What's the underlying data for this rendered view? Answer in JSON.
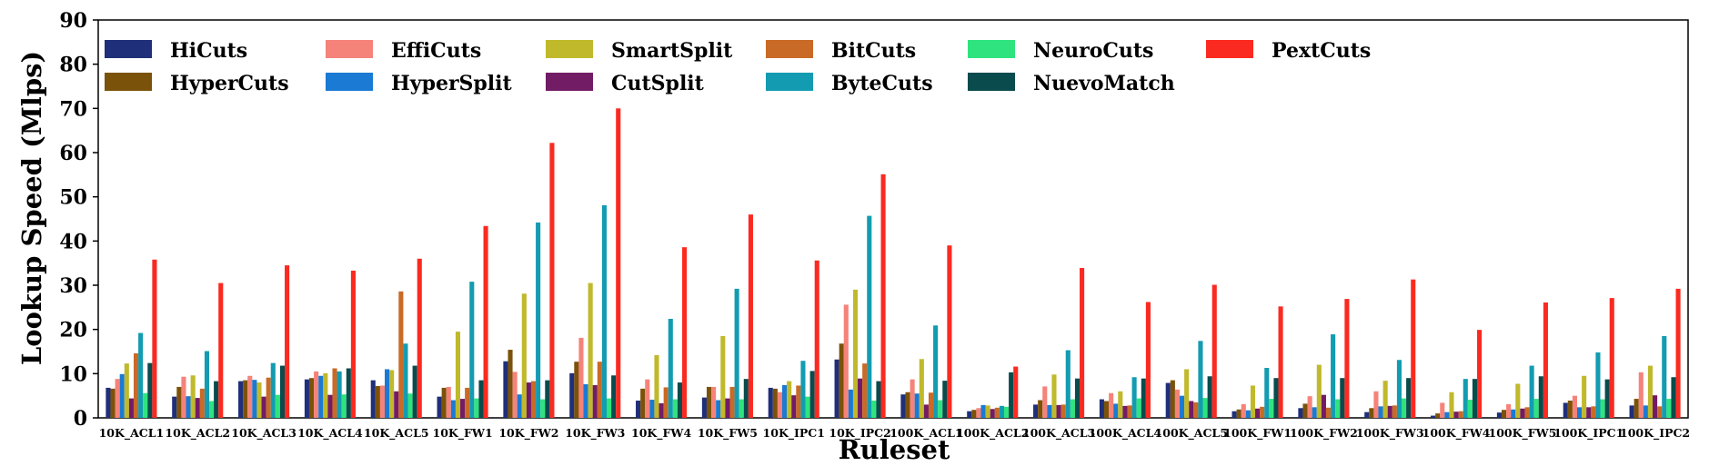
{
  "chart_data": {
    "type": "bar",
    "title": "",
    "xlabel": "Ruleset",
    "ylabel": "Lookup Speed (Mlps)",
    "ylim": [
      0,
      90
    ],
    "yticks": [
      0,
      10,
      20,
      30,
      40,
      50,
      60,
      70,
      80,
      90
    ],
    "grid": false,
    "legend_position": "top-left",
    "categories": [
      "10K_ACL1",
      "10K_ACL2",
      "10K_ACL3",
      "10K_ACL4",
      "10K_ACL5",
      "10K_FW1",
      "10K_FW2",
      "10K_FW3",
      "10K_FW4",
      "10K_FW5",
      "10K_IPC1",
      "10K_IPC2",
      "100K_ACL1",
      "100K_ACL2",
      "100K_ACL3",
      "100K_ACL4",
      "100K_ACL5",
      "100K_FW1",
      "100K_FW2",
      "100K_FW3",
      "100K_FW4",
      "100K_FW5",
      "100K_IPC1",
      "100K_IPC2"
    ],
    "series": [
      {
        "name": "HiCuts",
        "color": "#1f2f7a",
        "values": [
          6.8,
          4.8,
          8.3,
          8.7,
          8.5,
          4.8,
          12.8,
          10.1,
          3.9,
          4.6,
          6.8,
          13.2,
          5.3,
          1.5,
          3.0,
          4.2,
          7.9,
          1.5,
          2.2,
          1.3,
          0.5,
          1.2,
          3.4,
          2.8
        ]
      },
      {
        "name": "HyperCuts",
        "color": "#7b5209",
        "values": [
          6.6,
          7.0,
          8.5,
          9.0,
          7.2,
          6.8,
          15.4,
          12.7,
          6.6,
          7.0,
          6.6,
          16.8,
          5.8,
          1.8,
          4.0,
          3.8,
          8.5,
          1.9,
          3.2,
          2.2,
          1.0,
          1.8,
          3.9,
          4.3
        ]
      },
      {
        "name": "EffiCuts",
        "color": "#f5837a",
        "values": [
          8.8,
          9.3,
          9.5,
          10.5,
          7.3,
          7.0,
          10.4,
          18.1,
          8.7,
          7.0,
          5.8,
          25.6,
          8.7,
          2.2,
          7.1,
          5.6,
          6.4,
          3.1,
          4.9,
          6.0,
          3.4,
          3.1,
          5.0,
          10.3
        ]
      },
      {
        "name": "HyperSplit",
        "color": "#1a7ad4",
        "values": [
          9.9,
          4.9,
          8.6,
          9.5,
          11.0,
          4.0,
          5.3,
          7.6,
          4.1,
          4.0,
          7.4,
          6.4,
          5.5,
          2.9,
          2.9,
          3.2,
          5.0,
          1.7,
          2.4,
          2.6,
          1.3,
          1.9,
          2.4,
          2.8
        ]
      },
      {
        "name": "SmartSplit",
        "color": "#c0b92b",
        "values": [
          12.3,
          9.6,
          8.0,
          10.1,
          10.8,
          19.5,
          28.1,
          30.5,
          14.2,
          18.5,
          8.3,
          29.0,
          13.3,
          2.8,
          9.8,
          6.0,
          11.0,
          7.3,
          12.0,
          8.4,
          5.8,
          7.7,
          9.5,
          11.8
        ]
      },
      {
        "name": "CutSplit",
        "color": "#731c66",
        "values": [
          4.4,
          4.5,
          4.8,
          5.2,
          6.0,
          4.3,
          8.0,
          7.4,
          3.3,
          4.4,
          5.1,
          8.9,
          3.0,
          2.0,
          2.9,
          2.7,
          3.8,
          2.1,
          5.2,
          2.7,
          1.4,
          2.1,
          2.4,
          5.1
        ]
      },
      {
        "name": "BitCuts",
        "color": "#c96a26",
        "values": [
          14.6,
          6.6,
          9.1,
          11.2,
          28.6,
          6.8,
          8.3,
          12.7,
          6.9,
          7.0,
          7.3,
          12.3,
          5.7,
          2.3,
          3.0,
          2.8,
          3.5,
          2.5,
          2.3,
          2.8,
          1.5,
          2.4,
          2.6,
          2.6
        ]
      },
      {
        "name": "ByteCuts",
        "color": "#139cb1",
        "values": [
          19.2,
          15.1,
          12.4,
          10.5,
          16.8,
          30.8,
          44.2,
          48.1,
          22.4,
          29.2,
          12.9,
          45.7,
          20.9,
          2.7,
          15.3,
          9.2,
          17.4,
          11.3,
          18.9,
          13.1,
          8.8,
          11.8,
          14.8,
          18.5
        ]
      },
      {
        "name": "NeuroCuts",
        "color": "#2fe37f",
        "values": [
          5.6,
          3.8,
          5.2,
          5.3,
          5.5,
          4.4,
          4.2,
          4.4,
          4.2,
          4.2,
          4.8,
          3.9,
          4.0,
          2.5,
          4.2,
          4.4,
          4.5,
          4.3,
          4.2,
          4.4,
          4.1,
          4.3,
          4.2,
          4.3
        ]
      },
      {
        "name": "NuevoMatch",
        "color": "#0a4b4d",
        "values": [
          12.4,
          8.3,
          11.8,
          11.2,
          11.8,
          8.5,
          8.5,
          9.6,
          8.0,
          8.8,
          10.6,
          8.3,
          8.4,
          10.3,
          8.9,
          8.9,
          9.4,
          9.0,
          9.0,
          9.0,
          8.8,
          9.4,
          8.7,
          9.2
        ]
      },
      {
        "name": "PextCuts",
        "color": "#fb2a20",
        "values": [
          35.8,
          30.5,
          34.5,
          33.3,
          36.0,
          43.4,
          62.2,
          70.0,
          38.6,
          46.0,
          35.6,
          55.1,
          39.0,
          11.6,
          33.9,
          26.2,
          30.1,
          25.2,
          26.9,
          31.3,
          19.9,
          26.1,
          27.1,
          29.2
        ]
      }
    ]
  }
}
